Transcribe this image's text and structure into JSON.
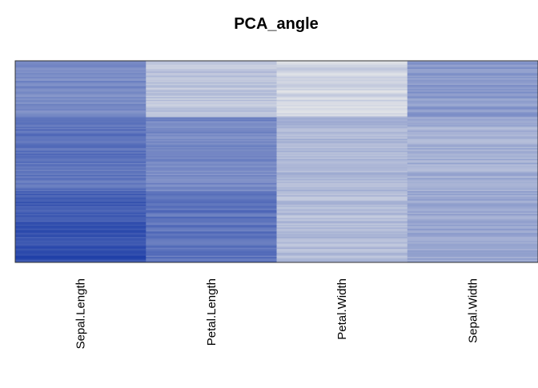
{
  "chart_data": {
    "type": "heatmap",
    "title": "PCA_angle",
    "xlabel": "",
    "ylabel": "",
    "columns": [
      "Sepal.Length",
      "Petal.Length",
      "Petal.Width",
      "Sepal.Width"
    ],
    "row_count": 150,
    "row_groups": [
      {
        "rows": 42,
        "values": [
          0.55,
          0.2,
          0.1,
          0.45
        ]
      },
      {
        "rows": 55,
        "values": [
          0.68,
          0.55,
          0.28,
          0.32
        ]
      },
      {
        "rows": 53,
        "values": [
          0.8,
          0.68,
          0.25,
          0.38
        ]
      }
    ],
    "value_range": [
      0,
      1
    ],
    "color_scale": {
      "low": "#e3e5e8",
      "high": "#1f3fa8"
    },
    "grid": false,
    "legend": "none"
  }
}
